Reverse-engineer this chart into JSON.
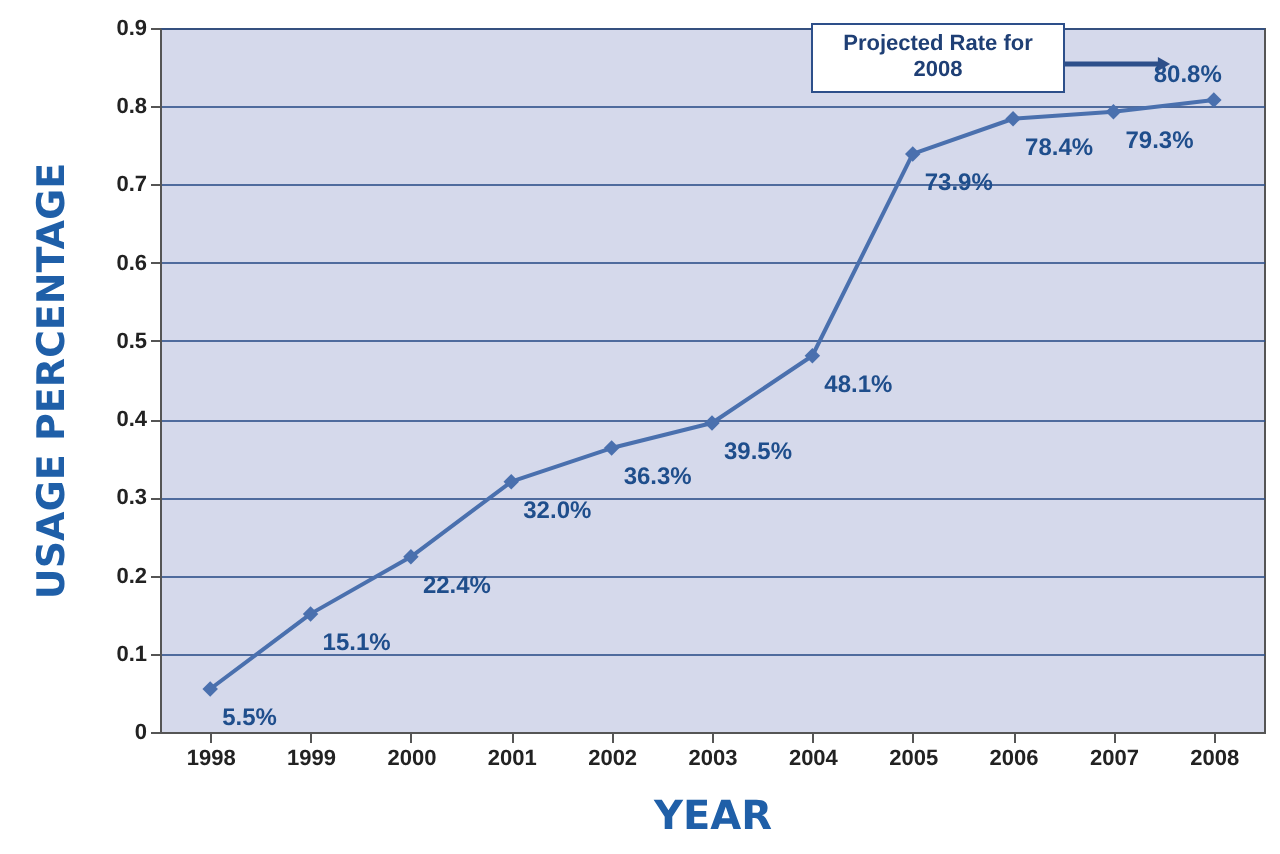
{
  "chart_data": {
    "type": "line",
    "xlabel": "YEAR",
    "ylabel": "USAGE PERCENTAGE",
    "categories": [
      "1998",
      "1999",
      "2000",
      "2001",
      "2002",
      "2003",
      "2004",
      "2005",
      "2006",
      "2007",
      "2008"
    ],
    "series": [
      {
        "color": "#4a70ae",
        "values": [
          0.055,
          0.151,
          0.224,
          0.32,
          0.363,
          0.395,
          0.481,
          0.739,
          0.784,
          0.793,
          0.808
        ],
        "value_labels": [
          "5.5%",
          "15.1%",
          "22.4%",
          "32.0%",
          "36.3%",
          "39.5%",
          "48.1%",
          "73.9%",
          "78.4%",
          "79.3%",
          "80.8%"
        ]
      }
    ],
    "ylim": [
      0,
      0.9
    ],
    "yticks": [
      0,
      0.1,
      0.2,
      0.3,
      0.4,
      0.5,
      0.6,
      0.7,
      0.8,
      0.9
    ],
    "grid": "y",
    "marker": "diamond",
    "line_style": "solid",
    "annotations": [
      "Projected Rate for\n2008"
    ]
  }
}
